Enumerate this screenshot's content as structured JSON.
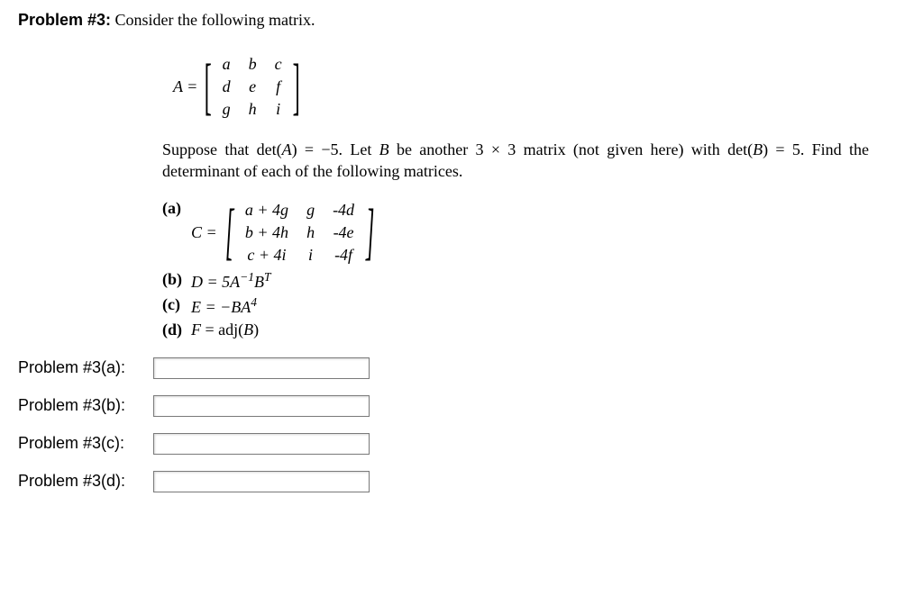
{
  "heading": {
    "label": "Problem #3:",
    "lead": " Consider the following matrix."
  },
  "matrixA": {
    "lhs": "A =",
    "rows": [
      [
        "a",
        "b",
        "c"
      ],
      [
        "d",
        "e",
        "f"
      ],
      [
        "g",
        "h",
        "i"
      ]
    ]
  },
  "paragraph": "Suppose that det(A) = −5. Let B be another 3 × 3 matrix (not given here) with det(B) = 5. Find the determinant of each of the following matrices.",
  "partA": {
    "label": "(a)",
    "lhs": "C =",
    "rows": [
      [
        "a + 4g",
        "g",
        "-4d"
      ],
      [
        "b + 4h",
        "h",
        "-4e"
      ],
      [
        "c + 4i",
        "i",
        "-4f"
      ]
    ]
  },
  "partB": {
    "label": "(b)",
    "text_prefix": "D = 5A",
    "sup": "−1",
    "text_mid": "B",
    "sup2": "T"
  },
  "partC": {
    "label": "(c)",
    "text_prefix": "E = −BA",
    "sup": "4"
  },
  "partD": {
    "label": "(d)",
    "text": "F = adj(B)"
  },
  "answers": [
    {
      "label": "Problem #3(a):"
    },
    {
      "label": "Problem #3(b):"
    },
    {
      "label": "Problem #3(c):"
    },
    {
      "label": "Problem #3(d):"
    }
  ]
}
